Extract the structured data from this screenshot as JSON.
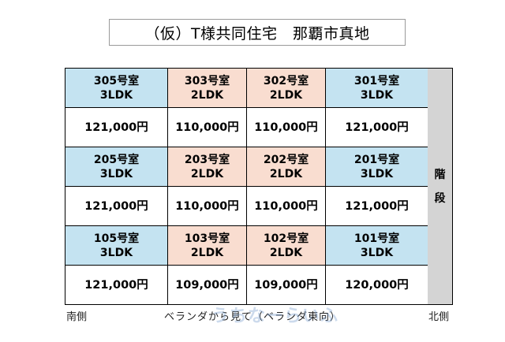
{
  "title": "（仮）T様共同住宅　那覇市真地",
  "floors": [
    {
      "units": [
        {
          "room": "305号室",
          "layout": "3LDK",
          "rent": "121,000円",
          "color": "#c4e3f1"
        },
        {
          "room": "303号室",
          "layout": "2LDK",
          "rent": "110,000円",
          "color": "#f9ddd0"
        },
        {
          "room": "302号室",
          "layout": "2LDK",
          "rent": "110,000円",
          "color": "#f9ddd0"
        },
        {
          "room": "301号室",
          "layout": "3LDK",
          "rent": "121,000円",
          "color": "#c4e3f1"
        }
      ]
    },
    {
      "units": [
        {
          "room": "205号室",
          "layout": "3LDK",
          "rent": "121,000円",
          "color": "#c4e3f1"
        },
        {
          "room": "203号室",
          "layout": "2LDK",
          "rent": "110,000円",
          "color": "#f9ddd0"
        },
        {
          "room": "202号室",
          "layout": "2LDK",
          "rent": "110,000円",
          "color": "#f9ddd0"
        },
        {
          "room": "201号室",
          "layout": "3LDK",
          "rent": "121,000円",
          "color": "#c4e3f1"
        }
      ]
    },
    {
      "units": [
        {
          "room": "105号室",
          "layout": "3LDK",
          "rent": "121,000円",
          "color": "#c4e3f1"
        },
        {
          "room": "103号室",
          "layout": "2LDK",
          "rent": "109,000円",
          "color": "#f9ddd0"
        },
        {
          "room": "102号室",
          "layout": "2LDK",
          "rent": "109,000円",
          "color": "#f9ddd0"
        },
        {
          "room": "101号室",
          "layout": "3LDK",
          "rent": "120,000円",
          "color": "#c4e3f1"
        }
      ]
    }
  ],
  "stairs": {
    "char1": "階",
    "char2": "段"
  },
  "footer": {
    "south": "南側",
    "veranda": "ベランダから見て（ベランダ東向）",
    "north": "北側"
  },
  "watermark": "うちなーらいふ"
}
